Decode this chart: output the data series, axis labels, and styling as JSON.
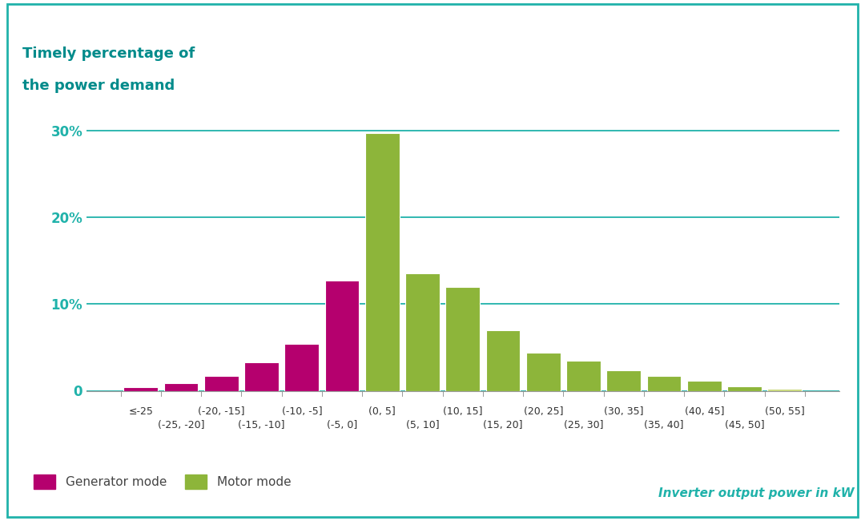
{
  "title_line1": "Timely percentage of",
  "title_line2": "the power demand",
  "title_color": "#008B8B",
  "background_color": "#ffffff",
  "border_color": "#20B2AA",
  "generator_color": "#B5006E",
  "motor_color": "#8DB53A",
  "motor_color_light": "#C8D87A",
  "grid_color": "#20B2AA",
  "tick_color": "#20B2AA",
  "legend_text_color": "#444444",
  "xlabel_color": "#20B2AA",
  "xtick_row1": [
    "≤-25",
    "(-20, -15]",
    "(-10, -5]",
    "(0, 5]",
    "(10, 15]",
    "(20, 25]",
    "(30, 35]",
    "(40, 45]",
    "(50, 55]"
  ],
  "xtick_row2": [
    "(-25, -20]",
    "(-15, -10]",
    "(-5, 0]",
    "(5, 10]",
    "(15, 20]",
    "(25, 30]",
    "(35, 40]",
    "(45, 50]"
  ],
  "bar_values": [
    0.4,
    0.9,
    1.7,
    3.3,
    5.4,
    12.7,
    29.7,
    13.5,
    12.0,
    7.0,
    4.4,
    3.5,
    2.4,
    1.7,
    1.2,
    0.5,
    0.2
  ],
  "bar_colors": [
    "gen",
    "gen",
    "gen",
    "gen",
    "gen",
    "gen",
    "motor",
    "motor",
    "motor",
    "motor",
    "motor",
    "motor",
    "motor",
    "motor",
    "motor",
    "motor",
    "motor_light"
  ],
  "ylim": [
    0,
    33
  ],
  "yticks": [
    0,
    10,
    20,
    30
  ],
  "ylabel_text": "Inverter output power in kW",
  "legend_generator": "Generator mode",
  "legend_motor": "Motor mode"
}
